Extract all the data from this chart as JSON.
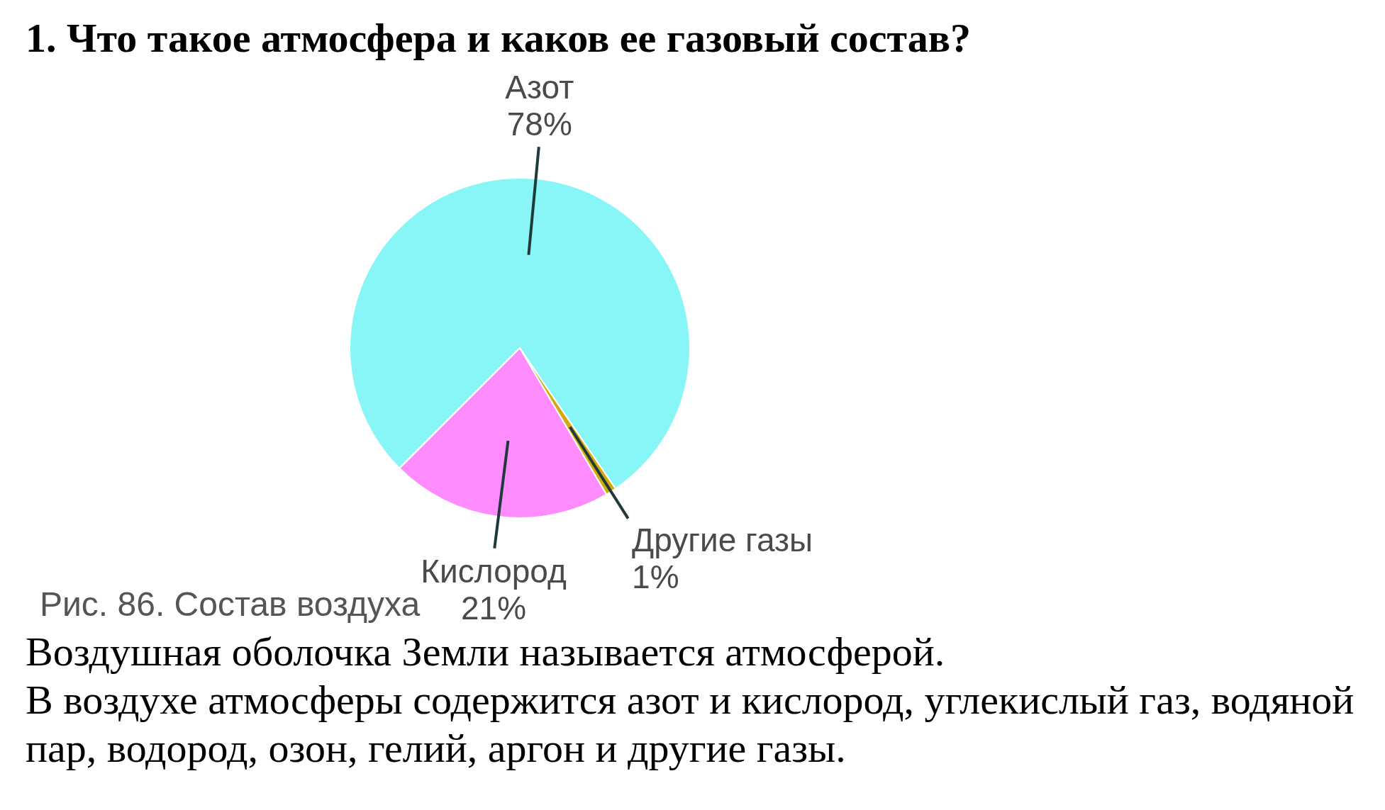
{
  "chart_data": {
    "type": "pie",
    "title": "1. Что такое атмосфера и каков ее газовый состав?",
    "categories": [
      "Азот",
      "Кислород",
      "Другие газы"
    ],
    "values": [
      78,
      21,
      1
    ],
    "colors": [
      "#88f6f6",
      "#ff8cff",
      "#d2aa10"
    ],
    "value_labels": [
      "78%",
      "21%",
      "1%"
    ],
    "annotations": [
      "Рис. 86. Состав воздуха",
      "Воздушная оболочка Земли называется атмосферой.",
      "В воздухе атмосферы содержится азот и кислород, углекислый газ, водяной пар, водород, озон, гелий, аргон и другие газы."
    ]
  }
}
